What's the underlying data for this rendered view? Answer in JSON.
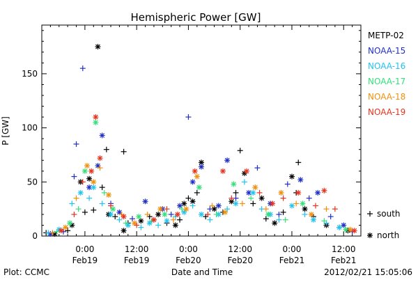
{
  "chart_data": {
    "type": "scatter",
    "title": "Hemispheric Power [GW]",
    "ylabel": "P [GW]",
    "xlabel": "Date and Time",
    "ylim": [
      0,
      195
    ],
    "xlim": [
      "2012-02-18T14:00",
      "2012-02-21T16:00"
    ],
    "yticks": [
      0,
      50,
      100,
      150
    ],
    "xticks": [
      {
        "t": "2012-02-19T00:00",
        "time": "0:00",
        "date": "Feb19"
      },
      {
        "t": "2012-02-19T12:00",
        "time": "12:00",
        "date": "Feb19"
      },
      {
        "t": "2012-02-20T00:00",
        "time": "0:00",
        "date": "Feb20"
      },
      {
        "t": "2012-02-20T12:00",
        "time": "12:00",
        "date": "Feb20"
      },
      {
        "t": "2012-02-21T00:00",
        "time": "0:00",
        "date": "Feb21"
      },
      {
        "t": "2012-02-21T12:00",
        "time": "12:00",
        "date": "Feb21"
      }
    ],
    "legend": [
      {
        "name": "METP-02",
        "color": "#000000"
      },
      {
        "name": "NOAA-15",
        "color": "#1f2fc8"
      },
      {
        "name": "NOAA-16",
        "color": "#22c3f0"
      },
      {
        "name": "NOAA-17",
        "color": "#33e07a"
      },
      {
        "name": "NOAA-18",
        "color": "#f0900d"
      },
      {
        "name": "NOAA-19",
        "color": "#e8321e"
      }
    ],
    "marker_legend": {
      "plus": "south",
      "star": "north"
    },
    "series": [
      {
        "name": "METP-02",
        "color": "#000000",
        "points": [
          [
            "2012-02-18T15:00",
            3,
            "+"
          ],
          [
            "2012-02-18T17:00",
            2,
            "*"
          ],
          [
            "2012-02-18T20:00",
            5,
            "+"
          ],
          [
            "2012-02-18T21:00",
            10,
            "*"
          ],
          [
            "2012-02-18T23:00",
            50,
            "*"
          ],
          [
            "2012-02-19T00:00",
            22,
            "+"
          ],
          [
            "2012-02-19T01:00",
            53,
            "*"
          ],
          [
            "2012-02-19T02:00",
            24,
            "+"
          ],
          [
            "2012-02-19T03:00",
            175,
            "*"
          ],
          [
            "2012-02-19T04:00",
            45,
            "+"
          ],
          [
            "2012-02-19T05:00",
            80,
            "+"
          ],
          [
            "2012-02-19T05:30",
            20,
            "*"
          ],
          [
            "2012-02-19T07:00",
            18,
            "+"
          ],
          [
            "2012-02-19T09:00",
            5,
            "*"
          ],
          [
            "2012-02-19T10:00",
            12,
            "+"
          ],
          [
            "2012-02-19T13:00",
            14,
            "*"
          ],
          [
            "2012-02-19T15:00",
            18,
            "+"
          ],
          [
            "2012-02-19T17:00",
            20,
            "*"
          ],
          [
            "2012-02-19T19:00",
            12,
            "+"
          ],
          [
            "2012-02-19T21:00",
            10,
            "*"
          ],
          [
            "2012-02-19T22:00",
            15,
            "+"
          ],
          [
            "2012-02-19T23:00",
            30,
            "*"
          ],
          [
            "2012-02-20T00:00",
            35,
            "+"
          ],
          [
            "2012-02-20T01:00",
            32,
            "*"
          ],
          [
            "2012-02-20T02:00",
            40,
            "+"
          ],
          [
            "2012-02-20T03:00",
            68,
            "*"
          ],
          [
            "2012-02-20T04:00",
            18,
            "+"
          ],
          [
            "2012-02-20T06:00",
            25,
            "*"
          ],
          [
            "2012-02-20T08:00",
            22,
            "+"
          ],
          [
            "2012-02-20T10:00",
            32,
            "*"
          ],
          [
            "2012-02-20T11:00",
            40,
            "+"
          ],
          [
            "2012-02-20T13:00",
            58,
            "*"
          ],
          [
            "2012-02-20T15:00",
            30,
            "+"
          ],
          [
            "2012-02-20T17:00",
            35,
            "*"
          ],
          [
            "2012-02-20T18:00",
            16,
            "+"
          ],
          [
            "2012-02-20T20:00",
            12,
            "*"
          ],
          [
            "2012-02-20T22:00",
            22,
            "+"
          ],
          [
            "2012-02-21T00:00",
            55,
            "*"
          ],
          [
            "2012-02-21T01:00",
            40,
            "+"
          ],
          [
            "2012-02-21T03:00",
            25,
            "*"
          ],
          [
            "2012-02-21T05:00",
            18,
            "+"
          ],
          [
            "2012-02-21T08:00",
            10,
            "*"
          ],
          [
            "2012-02-21T11:00",
            8,
            "+"
          ],
          [
            "2012-02-21T13:00",
            5,
            "*"
          ],
          [
            "2012-02-19T09:00",
            78,
            "+"
          ],
          [
            "2012-02-20T12:00",
            79,
            "+"
          ],
          [
            "2012-02-21T01:30",
            68,
            "+"
          ]
        ]
      },
      {
        "name": "NOAA-15",
        "color": "#1f2fc8",
        "points": [
          [
            "2012-02-18T16:00",
            2,
            "*"
          ],
          [
            "2012-02-18T19:00",
            4,
            "+"
          ],
          [
            "2012-02-18T21:30",
            55,
            "+"
          ],
          [
            "2012-02-18T22:00",
            85,
            "+"
          ],
          [
            "2012-02-18T23:30",
            155,
            "+"
          ],
          [
            "2012-02-19T01:00",
            45,
            "*"
          ],
          [
            "2012-02-19T03:00",
            65,
            "*"
          ],
          [
            "2012-02-19T04:00",
            93,
            "*"
          ],
          [
            "2012-02-19T06:00",
            30,
            "+"
          ],
          [
            "2012-02-19T08:00",
            22,
            "*"
          ],
          [
            "2012-02-19T11:00",
            16,
            "+"
          ],
          [
            "2012-02-19T14:00",
            32,
            "*"
          ],
          [
            "2012-02-19T16:00",
            15,
            "+"
          ],
          [
            "2012-02-19T18:00",
            25,
            "*"
          ],
          [
            "2012-02-19T20:00",
            20,
            "+"
          ],
          [
            "2012-02-19T22:00",
            28,
            "*"
          ],
          [
            "2012-02-20T00:00",
            110,
            "+"
          ],
          [
            "2012-02-20T01:00",
            50,
            "*"
          ],
          [
            "2012-02-20T03:00",
            64,
            "*"
          ],
          [
            "2012-02-20T05:00",
            25,
            "+"
          ],
          [
            "2012-02-20T07:00",
            28,
            "*"
          ],
          [
            "2012-02-20T09:00",
            70,
            "*"
          ],
          [
            "2012-02-20T11:00",
            35,
            "+"
          ],
          [
            "2012-02-20T14:00",
            40,
            "*"
          ],
          [
            "2012-02-20T16:00",
            63,
            "+"
          ],
          [
            "2012-02-20T19:00",
            30,
            "*"
          ],
          [
            "2012-02-20T21:00",
            20,
            "+"
          ],
          [
            "2012-02-20T23:00",
            48,
            "+"
          ],
          [
            "2012-02-21T02:00",
            52,
            "*"
          ],
          [
            "2012-02-21T04:00",
            35,
            "+"
          ],
          [
            "2012-02-21T06:00",
            40,
            "*"
          ],
          [
            "2012-02-21T09:00",
            18,
            "+"
          ],
          [
            "2012-02-21T12:00",
            10,
            "*"
          ],
          [
            "2012-02-21T14:00",
            4,
            "+"
          ]
        ]
      },
      {
        "name": "NOAA-16",
        "color": "#22c3f0",
        "points": [
          [
            "2012-02-18T15:30",
            3,
            "+"
          ],
          [
            "2012-02-18T18:00",
            6,
            "*"
          ],
          [
            "2012-02-18T21:00",
            30,
            "+"
          ],
          [
            "2012-02-18T23:00",
            40,
            "*"
          ],
          [
            "2012-02-19T01:00",
            35,
            "+"
          ],
          [
            "2012-02-19T02:00",
            45,
            "*"
          ],
          [
            "2012-02-19T04:00",
            30,
            "+"
          ],
          [
            "2012-02-19T06:00",
            20,
            "*"
          ],
          [
            "2012-02-19T08:00",
            15,
            "+"
          ],
          [
            "2012-02-19T10:00",
            10,
            "*"
          ],
          [
            "2012-02-19T13:00",
            8,
            "+"
          ],
          [
            "2012-02-19T15:00",
            12,
            "*"
          ],
          [
            "2012-02-19T17:00",
            10,
            "+"
          ],
          [
            "2012-02-19T19:00",
            14,
            "*"
          ],
          [
            "2012-02-19T21:00",
            18,
            "+"
          ],
          [
            "2012-02-19T23:00",
            22,
            "*"
          ],
          [
            "2012-02-20T01:00",
            28,
            "+"
          ],
          [
            "2012-02-20T03:00",
            20,
            "*"
          ],
          [
            "2012-02-20T05:00",
            15,
            "+"
          ],
          [
            "2012-02-20T07:00",
            20,
            "*"
          ],
          [
            "2012-02-20T09:00",
            25,
            "+"
          ],
          [
            "2012-02-20T11:00",
            30,
            "*"
          ],
          [
            "2012-02-20T13:00",
            50,
            "+"
          ],
          [
            "2012-02-20T15:00",
            40,
            "*"
          ],
          [
            "2012-02-20T17:00",
            25,
            "+"
          ],
          [
            "2012-02-20T19:00",
            20,
            "*"
          ],
          [
            "2012-02-20T21:00",
            15,
            "+"
          ],
          [
            "2012-02-21T00:00",
            28,
            "*"
          ],
          [
            "2012-02-21T03:00",
            20,
            "+"
          ],
          [
            "2012-02-21T05:00",
            15,
            "*"
          ],
          [
            "2012-02-21T08:00",
            12,
            "+"
          ],
          [
            "2012-02-21T11:00",
            8,
            "*"
          ]
        ]
      },
      {
        "name": "NOAA-17",
        "color": "#33e07a",
        "points": [
          [
            "2012-02-18T17:30",
            4,
            "+"
          ],
          [
            "2012-02-18T20:30",
            12,
            "*"
          ],
          [
            "2012-02-18T22:30",
            25,
            "+"
          ],
          [
            "2012-02-19T00:00",
            60,
            "*"
          ],
          [
            "2012-02-19T02:30",
            105,
            "*"
          ],
          [
            "2012-02-19T04:30",
            40,
            "+"
          ],
          [
            "2012-02-19T06:30",
            25,
            "*"
          ],
          [
            "2012-02-19T09:30",
            12,
            "+"
          ],
          [
            "2012-02-19T12:30",
            18,
            "*"
          ],
          [
            "2012-02-19T15:30",
            14,
            "+"
          ],
          [
            "2012-02-19T18:30",
            20,
            "*"
          ],
          [
            "2012-02-19T22:30",
            25,
            "+"
          ],
          [
            "2012-02-20T02:30",
            45,
            "*"
          ],
          [
            "2012-02-20T06:30",
            20,
            "+"
          ],
          [
            "2012-02-20T10:30",
            48,
            "*"
          ],
          [
            "2012-02-20T14:30",
            35,
            "+"
          ],
          [
            "2012-02-20T18:30",
            20,
            "*"
          ],
          [
            "2012-02-20T22:30",
            15,
            "+"
          ],
          [
            "2012-02-21T02:30",
            30,
            "*"
          ],
          [
            "2012-02-21T07:30",
            14,
            "+"
          ],
          [
            "2012-02-21T12:30",
            6,
            "*"
          ]
        ]
      },
      {
        "name": "NOAA-18",
        "color": "#f0900d",
        "points": [
          [
            "2012-02-18T16:30",
            3,
            "+"
          ],
          [
            "2012-02-18T19:30",
            8,
            "*"
          ],
          [
            "2012-02-18T22:00",
            35,
            "+"
          ],
          [
            "2012-02-19T00:30",
            65,
            "*"
          ],
          [
            "2012-02-19T02:00",
            50,
            "*"
          ],
          [
            "2012-02-19T03:30",
            63,
            "+"
          ],
          [
            "2012-02-19T05:30",
            38,
            "*"
          ],
          [
            "2012-02-19T08:30",
            20,
            "+"
          ],
          [
            "2012-02-19T11:30",
            12,
            "*"
          ],
          [
            "2012-02-19T14:30",
            20,
            "+"
          ],
          [
            "2012-02-19T17:30",
            25,
            "*"
          ],
          [
            "2012-02-19T20:30",
            15,
            "+"
          ],
          [
            "2012-02-19T23:30",
            25,
            "*"
          ],
          [
            "2012-02-20T02:00",
            55,
            "*"
          ],
          [
            "2012-02-20T05:30",
            28,
            "+"
          ],
          [
            "2012-02-20T08:30",
            22,
            "*"
          ],
          [
            "2012-02-20T12:30",
            30,
            "+"
          ],
          [
            "2012-02-20T15:30",
            45,
            "*"
          ],
          [
            "2012-02-20T18:00",
            25,
            "+"
          ],
          [
            "2012-02-20T21:30",
            40,
            "*"
          ],
          [
            "2012-02-21T01:00",
            30,
            "+"
          ],
          [
            "2012-02-21T04:30",
            20,
            "*"
          ],
          [
            "2012-02-21T08:00",
            25,
            "+"
          ],
          [
            "2012-02-21T13:30",
            6,
            "*"
          ]
        ]
      },
      {
        "name": "NOAA-19",
        "color": "#e8321e",
        "points": [
          [
            "2012-02-18T18:30",
            5,
            "*"
          ],
          [
            "2012-02-18T21:30",
            20,
            "+"
          ],
          [
            "2012-02-18T23:30",
            50,
            "+"
          ],
          [
            "2012-02-19T01:30",
            60,
            "*"
          ],
          [
            "2012-02-19T02:30",
            110,
            "*"
          ],
          [
            "2012-02-19T03:30",
            72,
            "*"
          ],
          [
            "2012-02-19T06:00",
            28,
            "+"
          ],
          [
            "2012-02-19T09:00",
            18,
            "*"
          ],
          [
            "2012-02-19T12:00",
            10,
            "+"
          ],
          [
            "2012-02-19T16:00",
            15,
            "*"
          ],
          [
            "2012-02-19T19:00",
            25,
            "+"
          ],
          [
            "2012-02-19T21:30",
            20,
            "*"
          ],
          [
            "2012-02-20T01:30",
            60,
            "*"
          ],
          [
            "2012-02-20T04:30",
            20,
            "+"
          ],
          [
            "2012-02-20T08:00",
            60,
            "*"
          ],
          [
            "2012-02-20T10:00",
            35,
            "+"
          ],
          [
            "2012-02-20T13:30",
            60,
            "*"
          ],
          [
            "2012-02-20T16:30",
            40,
            "+"
          ],
          [
            "2012-02-20T19:30",
            30,
            "*"
          ],
          [
            "2012-02-20T22:00",
            35,
            "+"
          ],
          [
            "2012-02-21T01:30",
            40,
            "*"
          ],
          [
            "2012-02-21T05:30",
            28,
            "+"
          ],
          [
            "2012-02-21T07:30",
            42,
            "*"
          ],
          [
            "2012-02-21T10:00",
            25,
            "+"
          ],
          [
            "2012-02-21T14:30",
            5,
            "*"
          ]
        ]
      }
    ]
  },
  "footer": {
    "plot_credit": "Plot: CCMC",
    "timestamp": "2012/02/21 15:05:06"
  }
}
